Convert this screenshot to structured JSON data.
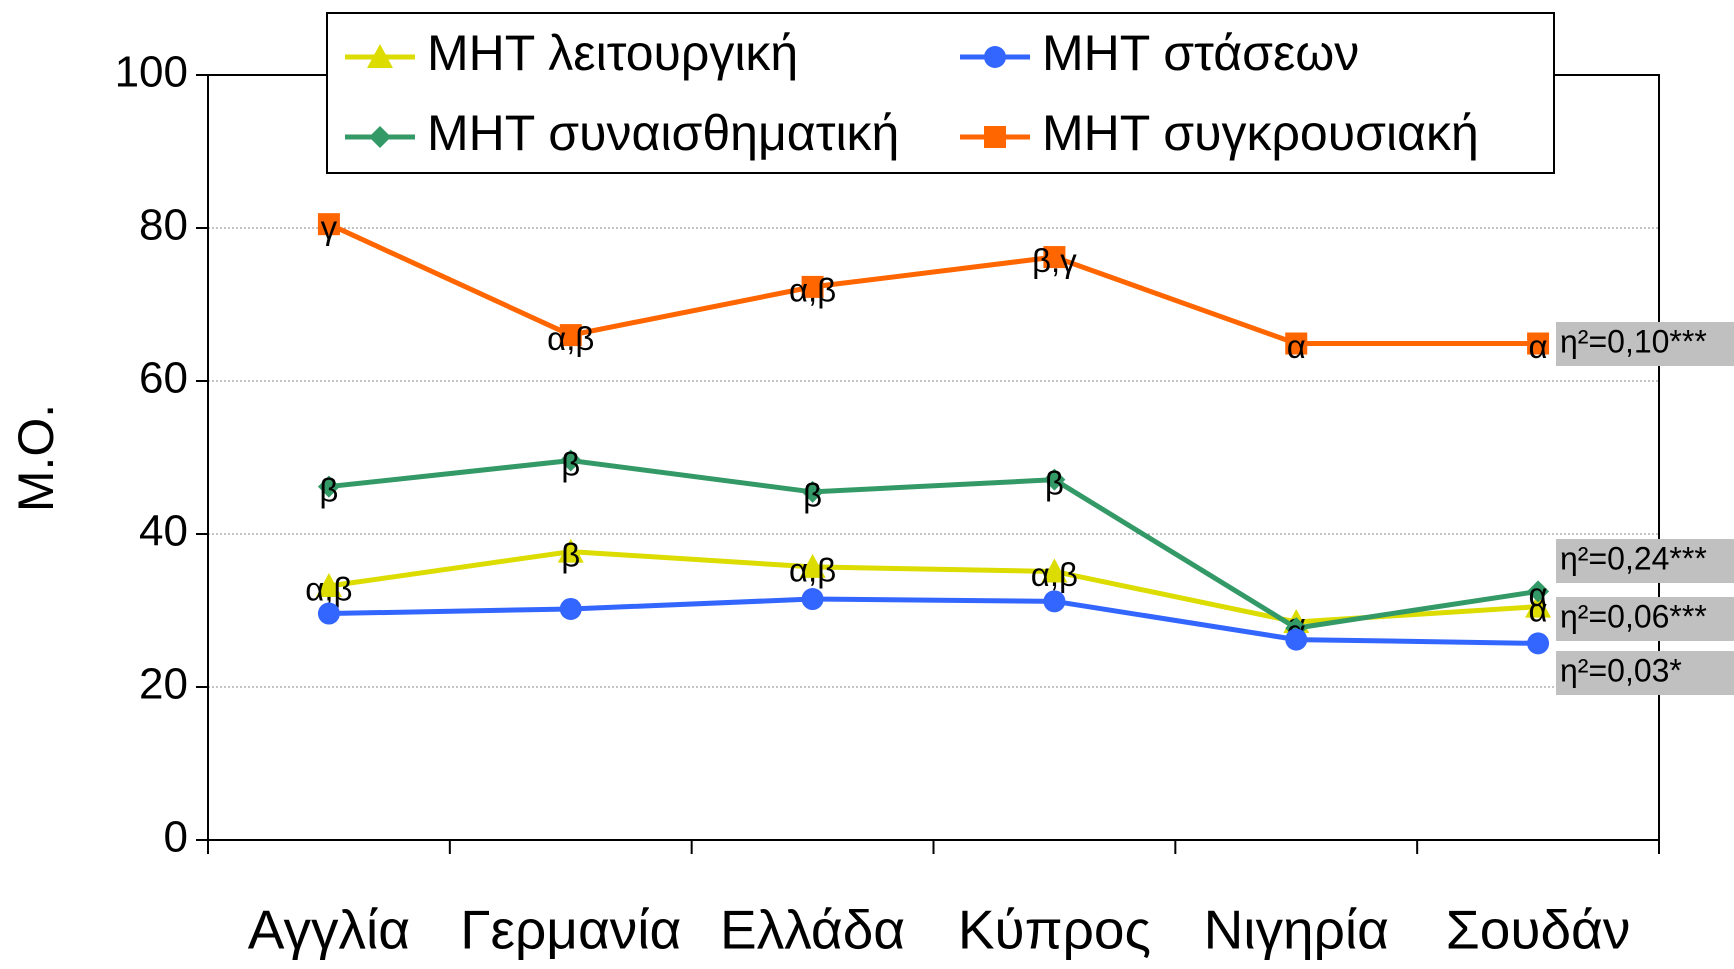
{
  "chart_data": {
    "type": "line",
    "y_label": "Μ.Ο.",
    "categories": [
      "Αγγλία",
      "Γερμανία",
      "Ελλάδα",
      "Κύπρος",
      "Νιγηρία",
      "Σουδάν"
    ],
    "ylim": [
      0,
      100
    ],
    "yticks": [
      0,
      20,
      40,
      60,
      80,
      100
    ],
    "grid": true,
    "series": [
      {
        "name": "ΜΗΤ λειτουργική",
        "color": "#dcdc00",
        "marker": "triangle",
        "values": [
          33.2,
          37.7,
          35.7,
          35.1,
          28.5,
          30.5
        ],
        "point_labels": [
          "α,β",
          "β",
          "α,β",
          "α,β",
          "α",
          "α"
        ],
        "note": "η²=0,06***"
      },
      {
        "name": "ΜΗΤ συναισθηματική",
        "color": "#339966",
        "marker": "diamond",
        "values": [
          46.2,
          49.6,
          45.5,
          47.1,
          27.7,
          32.5
        ],
        "point_labels": [
          "β",
          "β",
          "β",
          "β",
          "α",
          "α"
        ],
        "note": "η²=0,24***"
      },
      {
        "name": "ΜΗΤ στάσεων",
        "color": "#3366ff",
        "marker": "circle",
        "values": [
          29.6,
          30.2,
          31.5,
          31.2,
          26.2,
          25.7
        ],
        "note": "η²=0,03*"
      },
      {
        "name": "ΜΗΤ συγκρουσιακή",
        "color": "#ff6600",
        "marker": "square",
        "values": [
          80.5,
          66.0,
          72.3,
          76.2,
          64.9,
          64.9
        ],
        "point_labels": [
          "γ",
          "α,β",
          "α,β",
          "β,γ",
          "α",
          "α"
        ],
        "note": "η²=0,10***"
      }
    ]
  }
}
